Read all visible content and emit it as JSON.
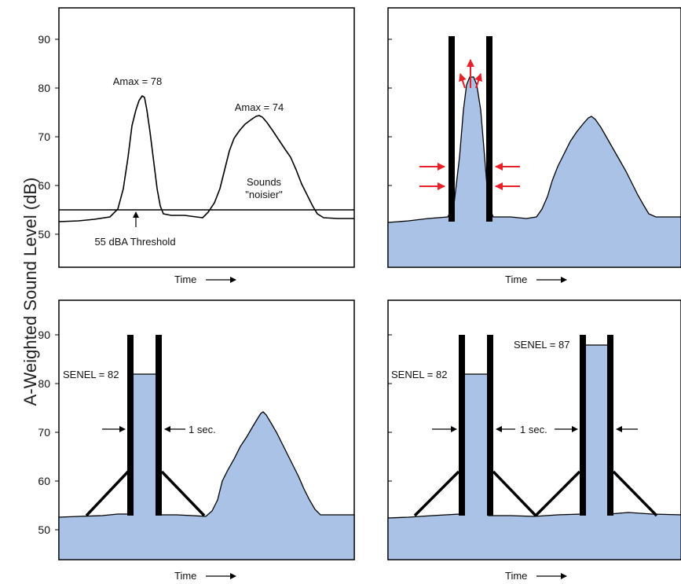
{
  "y_axis_label": "A-Weighted Sound Level (dB)",
  "x_axis_label": "Time",
  "y_ticks": [
    "90",
    "80",
    "70",
    "60",
    "50"
  ],
  "panel1": {
    "peak1_label": "Amax = 78",
    "peak2_label": "Amax = 74",
    "threshold_label": "55 dBA Threshold",
    "note_line1": "Sounds",
    "note_line2": "\"noisier\""
  },
  "panel3": {
    "senel_label": "SENEL = 82",
    "duration_label": "1 sec."
  },
  "panel4": {
    "senel1_label": "SENEL = 82",
    "senel2_label": "SENEL = 87",
    "duration_label": "1 sec."
  },
  "colors": {
    "fill": "#a9c2e6",
    "frame": "#000000",
    "arrow_red": "#e8202a"
  }
}
